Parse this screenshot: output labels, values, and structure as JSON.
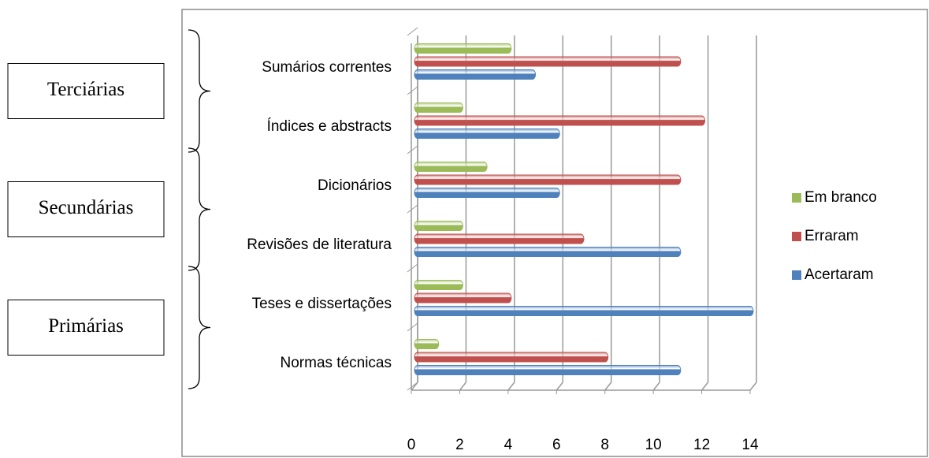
{
  "chart_data": {
    "type": "bar",
    "orientation": "horizontal",
    "categories": [
      "Normas técnicas",
      "Teses e dissertações",
      "Revisões de literatura",
      "Dicionários",
      "Índices e abstracts",
      "Sumários correntes"
    ],
    "series": [
      {
        "name": "Acertaram",
        "color": "#4f81bd",
        "values": [
          11,
          14,
          11,
          6,
          6,
          5
        ]
      },
      {
        "name": "Erraram",
        "color": "#c0504d",
        "values": [
          8,
          4,
          7,
          11,
          12,
          11
        ]
      },
      {
        "name": "Em branco",
        "color": "#9bbb59",
        "values": [
          1,
          2,
          2,
          3,
          2,
          4
        ]
      }
    ],
    "xlim": [
      0,
      14
    ],
    "xticks": [
      0,
      2,
      4,
      6,
      8,
      10,
      12,
      14
    ],
    "grid": true,
    "legend": "right",
    "annotations": [
      "Primárias",
      "Secundárias",
      "Terciárias"
    ]
  }
}
